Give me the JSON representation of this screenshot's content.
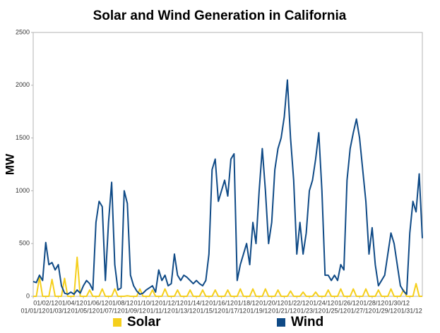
{
  "chart_data": {
    "type": "line",
    "title": "Solar and Wind Generation in California",
    "y_label": "MW",
    "xlim": [
      0,
      31
    ],
    "ylim": [
      0,
      2500
    ],
    "yticks": [
      0,
      500,
      1000,
      1500,
      2000,
      2500
    ],
    "xticks": [
      {
        "value": 0,
        "label": "01/01/12"
      },
      {
        "value": 1,
        "label": "01/02/12"
      },
      {
        "value": 2,
        "label": "01/03/12"
      },
      {
        "value": 3,
        "label": "01/04/12"
      },
      {
        "value": 4,
        "label": "01/05/12"
      },
      {
        "value": 5,
        "label": "01/06/12"
      },
      {
        "value": 6,
        "label": "01/07/12"
      },
      {
        "value": 7,
        "label": "01/08/12"
      },
      {
        "value": 8,
        "label": "01/09/12"
      },
      {
        "value": 9,
        "label": "01/10/12"
      },
      {
        "value": 10,
        "label": "01/11/12"
      },
      {
        "value": 11,
        "label": "01/12/12"
      },
      {
        "value": 12,
        "label": "01/13/12"
      },
      {
        "value": 13,
        "label": "01/14/12"
      },
      {
        "value": 14,
        "label": "01/15/12"
      },
      {
        "value": 15,
        "label": "01/16/12"
      },
      {
        "value": 16,
        "label": "01/17/12"
      },
      {
        "value": 17,
        "label": "01/18/12"
      },
      {
        "value": 18,
        "label": "01/19/12"
      },
      {
        "value": 19,
        "label": "01/20/12"
      },
      {
        "value": 20,
        "label": "01/21/12"
      },
      {
        "value": 21,
        "label": "01/22/12"
      },
      {
        "value": 22,
        "label": "01/23/12"
      },
      {
        "value": 23,
        "label": "01/24/12"
      },
      {
        "value": 24,
        "label": "01/25/12"
      },
      {
        "value": 25,
        "label": "01/26/12"
      },
      {
        "value": 26,
        "label": "01/27/12"
      },
      {
        "value": 27,
        "label": "01/28/12"
      },
      {
        "value": 28,
        "label": "01/29/12"
      },
      {
        "value": 29,
        "label": "01/30/12"
      },
      {
        "value": 30,
        "label": "01/31/12"
      }
    ],
    "grid": false,
    "legend": "bottom",
    "x": [
      0,
      0.25,
      0.5,
      0.75,
      1,
      1.25,
      1.5,
      1.75,
      2,
      2.25,
      2.5,
      2.75,
      3,
      3.25,
      3.5,
      3.75,
      4,
      4.25,
      4.5,
      4.75,
      5,
      5.25,
      5.5,
      5.75,
      6,
      6.25,
      6.5,
      6.75,
      7,
      7.25,
      7.5,
      7.75,
      8,
      8.25,
      8.5,
      8.75,
      9,
      9.25,
      9.5,
      9.75,
      10,
      10.25,
      10.5,
      10.75,
      11,
      11.25,
      11.5,
      11.75,
      12,
      12.25,
      12.5,
      12.75,
      13,
      13.25,
      13.5,
      13.75,
      14,
      14.25,
      14.5,
      14.75,
      15,
      15.25,
      15.5,
      15.75,
      16,
      16.25,
      16.5,
      16.75,
      17,
      17.25,
      17.5,
      17.75,
      18,
      18.25,
      18.5,
      18.75,
      19,
      19.25,
      19.5,
      19.75,
      20,
      20.25,
      20.5,
      20.75,
      21,
      21.25,
      21.5,
      21.75,
      22,
      22.25,
      22.5,
      22.75,
      23,
      23.25,
      23.5,
      23.75,
      24,
      24.25,
      24.5,
      24.75,
      25,
      25.25,
      25.5,
      25.75,
      26,
      26.25,
      26.5,
      26.75,
      27,
      27.25,
      27.5,
      27.75,
      28,
      28.25,
      28.5,
      28.75,
      29,
      29.25,
      29.5,
      29.75,
      30,
      30.25,
      30.5,
      30.75,
      31
    ],
    "series": [
      {
        "name": "Solar",
        "color": "#f5cf1c",
        "values": [
          0,
          0,
          180,
          0,
          0,
          0,
          160,
          0,
          0,
          0,
          170,
          0,
          0,
          0,
          370,
          0,
          0,
          0,
          60,
          0,
          0,
          0,
          70,
          0,
          0,
          0,
          70,
          0,
          0,
          0,
          5,
          0,
          0,
          0,
          70,
          0,
          0,
          0,
          60,
          0,
          0,
          0,
          70,
          0,
          0,
          0,
          60,
          0,
          0,
          0,
          60,
          0,
          0,
          0,
          60,
          0,
          0,
          0,
          60,
          0,
          0,
          0,
          60,
          0,
          0,
          0,
          70,
          0,
          0,
          0,
          70,
          0,
          0,
          0,
          70,
          0,
          0,
          0,
          60,
          0,
          0,
          0,
          50,
          0,
          0,
          0,
          40,
          0,
          0,
          0,
          40,
          0,
          0,
          0,
          60,
          0,
          0,
          0,
          70,
          0,
          0,
          0,
          70,
          0,
          0,
          0,
          70,
          0,
          0,
          0,
          60,
          0,
          0,
          0,
          70,
          0,
          0,
          0,
          60,
          0,
          0,
          0,
          120,
          0,
          0
        ]
      },
      {
        "name": "Wind",
        "color": "#0f4a86",
        "values": [
          140,
          130,
          200,
          150,
          510,
          300,
          320,
          250,
          300,
          100,
          30,
          20,
          40,
          20,
          60,
          30,
          100,
          150,
          120,
          60,
          700,
          900,
          850,
          150,
          700,
          1080,
          300,
          60,
          80,
          1000,
          880,
          200,
          100,
          50,
          20,
          30,
          60,
          80,
          100,
          40,
          250,
          150,
          200,
          100,
          120,
          400,
          200,
          150,
          200,
          180,
          150,
          120,
          150,
          120,
          100,
          150,
          400,
          1200,
          1300,
          900,
          1000,
          1100,
          950,
          1300,
          1350,
          150,
          300,
          400,
          500,
          300,
          700,
          500,
          1000,
          1400,
          1000,
          500,
          700,
          1200,
          1400,
          1500,
          1700,
          2050,
          1500,
          1100,
          400,
          700,
          400,
          600,
          1000,
          1100,
          1300,
          1550,
          1000,
          200,
          200,
          150,
          200,
          150,
          300,
          250,
          1100,
          1400,
          1550,
          1680,
          1500,
          1200,
          900,
          400,
          650,
          300,
          100,
          150,
          200,
          400,
          600,
          500,
          300,
          100,
          50,
          20,
          600,
          900,
          800,
          1160,
          550
        ]
      }
    ]
  }
}
